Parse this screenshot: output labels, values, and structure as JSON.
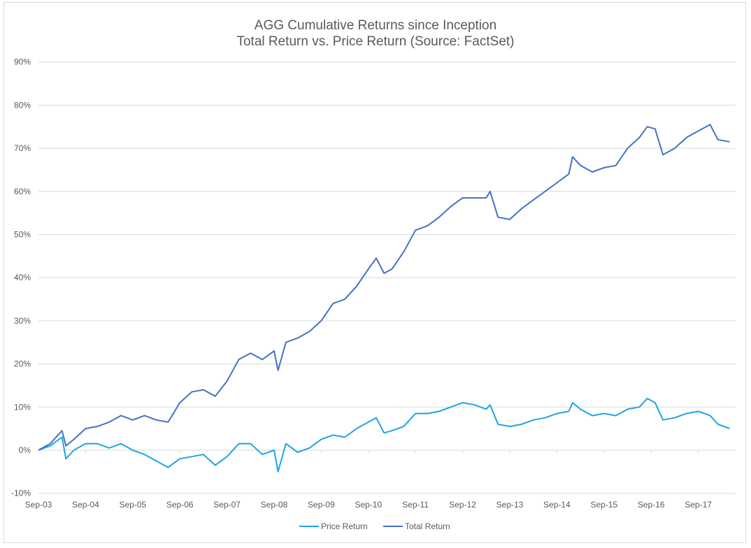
{
  "chart_data": {
    "type": "line",
    "title": "AGG Cumulative Returns since Inception",
    "subtitle": "Total Return vs. Price Return (Source: FactSet)",
    "xlabel": "",
    "ylabel": "",
    "ylim": [
      -10,
      90
    ],
    "yticks": [
      "-10%",
      "0%",
      "10%",
      "20%",
      "30%",
      "40%",
      "50%",
      "60%",
      "70%",
      "80%",
      "90%"
    ],
    "xticks": [
      "Sep-03",
      "Sep-04",
      "Sep-05",
      "Sep-06",
      "Sep-07",
      "Sep-08",
      "Sep-09",
      "Sep-10",
      "Sep-11",
      "Sep-12",
      "Sep-13",
      "Sep-14",
      "Sep-15",
      "Sep-16",
      "Sep-17"
    ],
    "grid": true,
    "legend_position": "bottom",
    "x": [
      "2003-09",
      "2003-12",
      "2004-03",
      "2004-04",
      "2004-06",
      "2004-09",
      "2004-12",
      "2005-03",
      "2005-06",
      "2005-09",
      "2005-12",
      "2006-03",
      "2006-06",
      "2006-09",
      "2006-12",
      "2007-03",
      "2007-06",
      "2007-09",
      "2007-12",
      "2008-03",
      "2008-06",
      "2008-09",
      "2008-10",
      "2008-12",
      "2009-03",
      "2009-06",
      "2009-09",
      "2009-12",
      "2010-03",
      "2010-06",
      "2010-09",
      "2010-11",
      "2011-01",
      "2011-03",
      "2011-06",
      "2011-09",
      "2011-12",
      "2012-03",
      "2012-06",
      "2012-09",
      "2012-12",
      "2013-03",
      "2013-04",
      "2013-06",
      "2013-09",
      "2013-12",
      "2014-03",
      "2014-06",
      "2014-09",
      "2014-12",
      "2015-01",
      "2015-03",
      "2015-06",
      "2015-09",
      "2015-12",
      "2016-03",
      "2016-06",
      "2016-08",
      "2016-10",
      "2016-12",
      "2017-03",
      "2017-06",
      "2017-09",
      "2017-12",
      "2018-02",
      "2018-05"
    ],
    "series": [
      {
        "name": "Price Return",
        "color": "#1fa5df",
        "values": [
          0,
          1,
          3,
          -2,
          0,
          1.5,
          1.5,
          0.5,
          1.5,
          0,
          -1,
          -2.5,
          -4,
          -2,
          -1.5,
          -1,
          -3.5,
          -1.5,
          1.5,
          1.5,
          -1,
          0,
          -5,
          1.5,
          -0.5,
          0.5,
          2.5,
          3.5,
          3,
          5,
          6.5,
          7.5,
          4,
          4.5,
          5.5,
          8.5,
          8.5,
          9,
          10,
          11,
          10.5,
          9.5,
          10.5,
          6,
          5.5,
          6,
          7,
          7.5,
          8.5,
          9,
          11,
          9.5,
          8,
          8.5,
          8,
          9.5,
          10,
          12,
          11,
          7,
          7.5,
          8.5,
          9,
          8,
          6,
          5
        ]
      },
      {
        "name": "Total Return",
        "color": "#4472c4",
        "values": [
          0,
          1.5,
          4.5,
          1,
          2.5,
          5,
          5.5,
          6.5,
          8,
          7,
          8,
          7,
          6.5,
          11,
          13.5,
          14,
          12.5,
          16,
          21,
          22.5,
          21,
          23,
          18.5,
          25,
          26,
          27.5,
          30,
          34,
          35,
          38,
          42,
          44.5,
          41,
          42,
          46,
          51,
          52,
          54,
          56.5,
          58.5,
          58.5,
          58.5,
          60,
          54,
          53.5,
          56,
          58,
          60,
          62,
          64,
          68,
          66,
          64.5,
          65.5,
          66,
          70,
          72.5,
          75,
          74.5,
          68.5,
          70,
          72.5,
          74,
          75.5,
          72,
          71.5
        ]
      }
    ]
  }
}
